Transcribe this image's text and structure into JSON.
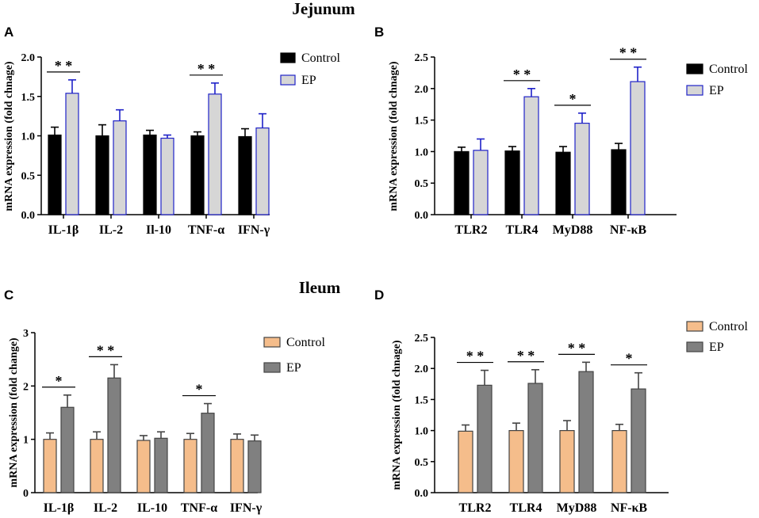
{
  "figure": {
    "section_titles": {
      "top": "Jejunum",
      "bottom": "Ileum"
    }
  },
  "chart_data": [
    {
      "panel": "A",
      "type": "bar",
      "ylabel": "mRNA expression (fold chnage)",
      "ylim": [
        0,
        2.0
      ],
      "yticks": [
        0.0,
        0.5,
        1.0,
        1.5,
        2.0
      ],
      "ytick_labels": [
        "0.0",
        "0.5",
        "1.0",
        "1.5",
        "2.0"
      ],
      "categories": [
        "IL-1β",
        "IL-2",
        "Il-10",
        "TNF-α",
        "IFN-γ"
      ],
      "series": [
        {
          "name": "Control",
          "values": [
            1.01,
            1.0,
            1.01,
            1.0,
            0.99
          ],
          "errors": [
            0.1,
            0.14,
            0.06,
            0.05,
            0.1
          ],
          "fill": "#000000",
          "stroke": "#000000"
        },
        {
          "name": "EP",
          "values": [
            1.54,
            1.19,
            0.97,
            1.53,
            1.1
          ],
          "errors": [
            0.17,
            0.14,
            0.04,
            0.14,
            0.18
          ],
          "fill": "#d6d6d6",
          "stroke": "#1f22c8"
        }
      ],
      "significance": [
        {
          "category": 0,
          "label": "* *"
        },
        {
          "category": 3,
          "label": "* *"
        }
      ],
      "legend_position": "top-right"
    },
    {
      "panel": "B",
      "type": "bar",
      "ylabel": "mRNA expression (fold chnage)",
      "ylim": [
        0,
        2.5
      ],
      "yticks": [
        0.0,
        0.5,
        1.0,
        1.5,
        2.0,
        2.5
      ],
      "ytick_labels": [
        "0.0",
        "0.5",
        "1.0",
        "1.5",
        "2.0",
        "2.5"
      ],
      "categories": [
        "TLR2",
        "TLR4",
        "MyD88",
        "NF-κB"
      ],
      "series": [
        {
          "name": "Control",
          "values": [
            1.0,
            1.01,
            0.99,
            1.03
          ],
          "errors": [
            0.07,
            0.07,
            0.09,
            0.1
          ],
          "fill": "#000000",
          "stroke": "#000000"
        },
        {
          "name": "EP",
          "values": [
            1.02,
            1.87,
            1.45,
            2.11
          ],
          "errors": [
            0.18,
            0.13,
            0.16,
            0.23
          ],
          "fill": "#d6d6d6",
          "stroke": "#1f22c8"
        }
      ],
      "significance": [
        {
          "category": 1,
          "label": "* *"
        },
        {
          "category": 2,
          "label": "*"
        },
        {
          "category": 3,
          "label": "* *"
        }
      ],
      "legend_position": "top-right"
    },
    {
      "panel": "C",
      "type": "bar",
      "ylabel": "mRNA expression (fold change)",
      "ylim": [
        0,
        3
      ],
      "yticks": [
        0,
        1,
        2,
        3
      ],
      "ytick_labels": [
        "0",
        "1",
        "2",
        "3"
      ],
      "categories": [
        "IL-1β",
        "IL-2",
        "IL-10",
        "TNF-α",
        "IFN-γ"
      ],
      "series": [
        {
          "name": "Control",
          "values": [
            1.0,
            1.0,
            0.98,
            1.0,
            1.0
          ],
          "errors": [
            0.12,
            0.14,
            0.09,
            0.11,
            0.1
          ],
          "fill": "#f5bd8b",
          "stroke": "#444444"
        },
        {
          "name": "EP",
          "values": [
            1.6,
            2.15,
            1.02,
            1.49,
            0.97
          ],
          "errors": [
            0.23,
            0.25,
            0.12,
            0.18,
            0.11
          ],
          "fill": "#808080",
          "stroke": "#444444"
        }
      ],
      "significance": [
        {
          "category": 0,
          "label": "*"
        },
        {
          "category": 1,
          "label": "* *"
        },
        {
          "category": 3,
          "label": "*"
        }
      ],
      "legend_position": "right"
    },
    {
      "panel": "D",
      "type": "bar",
      "ylabel": "mRNA expression (fold chnage)",
      "ylim": [
        0,
        2.5
      ],
      "yticks": [
        0.0,
        0.5,
        1.0,
        1.5,
        2.0,
        2.5
      ],
      "ytick_labels": [
        "0.0",
        "0.5",
        "1.0",
        "1.5",
        "2.0",
        "2.5"
      ],
      "categories": [
        "TLR2",
        "TLR4",
        "MyD88",
        "NF-κB"
      ],
      "series": [
        {
          "name": "Control",
          "values": [
            0.99,
            1.0,
            1.0,
            1.0
          ],
          "errors": [
            0.1,
            0.12,
            0.16,
            0.1
          ],
          "fill": "#f5bd8b",
          "stroke": "#444444"
        },
        {
          "name": "EP",
          "values": [
            1.73,
            1.76,
            1.95,
            1.67
          ],
          "errors": [
            0.24,
            0.22,
            0.15,
            0.26
          ],
          "fill": "#808080",
          "stroke": "#444444"
        }
      ],
      "significance": [
        {
          "category": 0,
          "label": "* *"
        },
        {
          "category": 1,
          "label": "* *"
        },
        {
          "category": 2,
          "label": "* *"
        },
        {
          "category": 3,
          "label": "*"
        }
      ],
      "legend_position": "top-right"
    }
  ]
}
